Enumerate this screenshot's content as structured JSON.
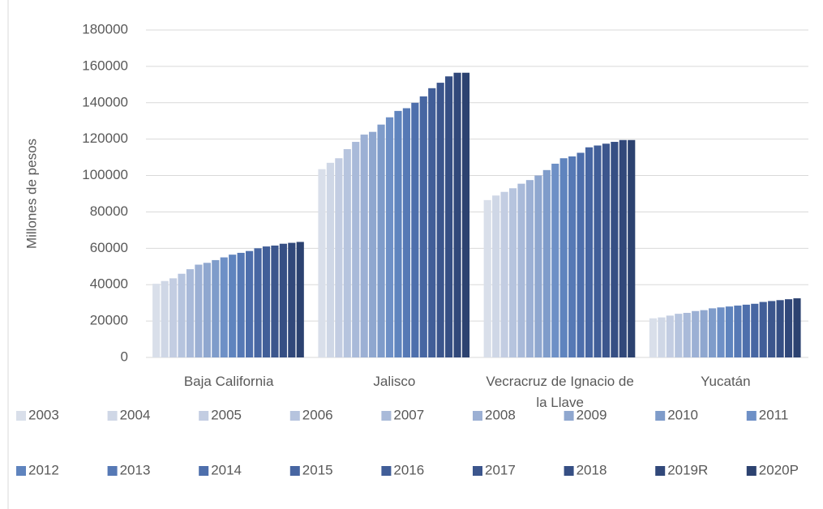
{
  "chart_data": {
    "type": "bar",
    "y_label": "Millones de pesos",
    "categories": [
      "Baja California",
      "Jalisco",
      "Vecracruz de Ignacio de la Llave",
      "Yucatán"
    ],
    "ylim": [
      0,
      180000
    ],
    "yticks": [
      0,
      20000,
      40000,
      60000,
      80000,
      100000,
      120000,
      140000,
      160000,
      180000
    ],
    "grid": true,
    "legend": "bottom",
    "series": [
      {
        "name": "2003",
        "color": "#d9dfea",
        "values": [
          40500,
          103500,
          86500,
          21500
        ]
      },
      {
        "name": "2004",
        "color": "#cfd7e6",
        "values": [
          42000,
          107000,
          89000,
          22000
        ]
      },
      {
        "name": "2005",
        "color": "#c3cde2",
        "values": [
          43500,
          109500,
          91000,
          23000
        ]
      },
      {
        "name": "2006",
        "color": "#b6c4de",
        "values": [
          46000,
          114500,
          93000,
          24000
        ]
      },
      {
        "name": "2007",
        "color": "#a9bad9",
        "values": [
          48500,
          118500,
          95500,
          24500
        ]
      },
      {
        "name": "2008",
        "color": "#9cb0d4",
        "values": [
          51000,
          122500,
          97500,
          25500
        ]
      },
      {
        "name": "2009",
        "color": "#8fa7cf",
        "values": [
          52000,
          124000,
          100000,
          26000
        ]
      },
      {
        "name": "2010",
        "color": "#7f9cca",
        "values": [
          53500,
          128000,
          103000,
          27000
        ]
      },
      {
        "name": "2011",
        "color": "#6e90c6",
        "values": [
          55000,
          132000,
          106500,
          27500
        ]
      },
      {
        "name": "2012",
        "color": "#5f84be",
        "values": [
          56500,
          135500,
          109500,
          28000
        ]
      },
      {
        "name": "2013",
        "color": "#5679b5",
        "values": [
          57500,
          137000,
          110500,
          28500
        ]
      },
      {
        "name": "2014",
        "color": "#4e6fac",
        "values": [
          58500,
          140000,
          112500,
          29000
        ]
      },
      {
        "name": "2015",
        "color": "#4766a2",
        "values": [
          60000,
          143500,
          115500,
          29500
        ]
      },
      {
        "name": "2016",
        "color": "#415e98",
        "values": [
          61000,
          148000,
          116500,
          30500
        ]
      },
      {
        "name": "2017",
        "color": "#3c568d",
        "values": [
          61500,
          151000,
          117500,
          31000
        ]
      },
      {
        "name": "2018",
        "color": "#364f84",
        "values": [
          62500,
          154500,
          118500,
          31500
        ]
      },
      {
        "name": "2019R",
        "color": "#31487a",
        "values": [
          63000,
          156500,
          119500,
          32000
        ]
      },
      {
        "name": "2020P",
        "color": "#2c4270",
        "values": [
          63500,
          156500,
          119500,
          32500
        ]
      }
    ]
  }
}
